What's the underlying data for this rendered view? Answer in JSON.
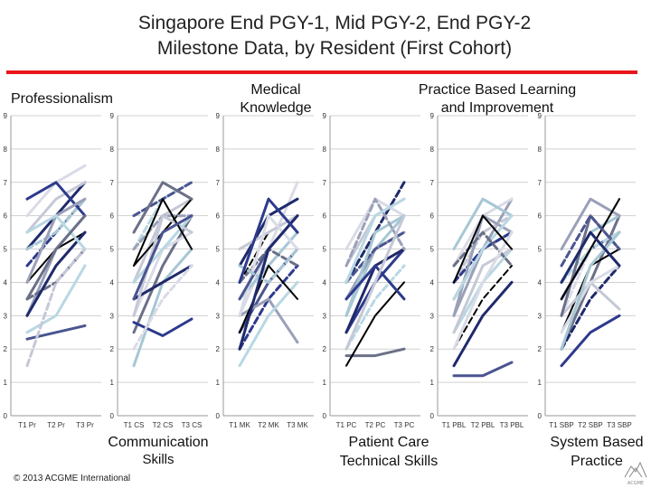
{
  "title": {
    "line1": "Singapore End PGY-1, Mid PGY-2, End PGY-2",
    "line2": "Milestone Data, by Resident (First Cohort)"
  },
  "group_labels": {
    "professionalism": "Professionalism",
    "medical_knowledge_1": "Medical",
    "medical_knowledge_2": "Knowledge",
    "pbli_1": "Practice Based Learning",
    "pbli_2": "and Improvement",
    "communication_1": "Communication",
    "communication_2": "Skills",
    "patient_care_1": "Patient Care",
    "patient_care_2": "Technical Skills",
    "sbp_1": "System Based",
    "sbp_2": "Practice"
  },
  "copyright": "© 2013 ACGME International",
  "colors": {
    "accent_line": "#e8161b",
    "series_palette": [
      "#1f2a6b",
      "#2d3a8c",
      "#9aa0b8",
      "#c5c8d6",
      "#b8d8e3",
      "#6b7088",
      "#d9dbe6",
      "#000000",
      "#4a5590",
      "#a7c7d4"
    ]
  },
  "chart_data": [
    {
      "type": "line",
      "competency": "Professionalism",
      "x": [
        "T1 Pr",
        "T2 Pr",
        "T3 Pr"
      ],
      "ylim": [
        0,
        9
      ],
      "yticks": [
        0,
        1,
        2,
        3,
        4,
        5,
        6,
        7,
        8,
        9
      ],
      "series": [
        {
          "values": [
            5,
            6,
            7
          ]
        },
        {
          "values": [
            4.5,
            5.5,
            6.5
          ]
        },
        {
          "values": [
            3,
            5,
            6
          ]
        },
        {
          "values": [
            5.5,
            6.5,
            7
          ]
        },
        {
          "values": [
            2.5,
            3,
            4.5
          ]
        },
        {
          "values": [
            3.5,
            4,
            5
          ]
        },
        {
          "values": [
            6,
            7,
            7.5
          ]
        },
        {
          "values": [
            4,
            5,
            5.5
          ]
        },
        {
          "values": [
            2.3,
            2.5,
            2.7
          ]
        },
        {
          "values": [
            5,
            5.5,
            6.5
          ]
        },
        {
          "values": [
            3,
            4.5,
            5.5
          ]
        },
        {
          "values": [
            6.5,
            7,
            6
          ]
        },
        {
          "values": [
            4,
            6,
            6.5
          ]
        },
        {
          "values": [
            1.5,
            4,
            5
          ]
        },
        {
          "values": [
            5.5,
            6,
            5
          ]
        },
        {
          "values": [
            3.5,
            5,
            6
          ]
        }
      ]
    },
    {
      "type": "line",
      "competency": "Communication Skills",
      "x": [
        "T1 CS",
        "T2 CS",
        "T3 CS"
      ],
      "ylim": [
        0,
        9
      ],
      "yticks": [
        0,
        1,
        2,
        3,
        4,
        5,
        6,
        7,
        8,
        9
      ],
      "series": [
        {
          "values": [
            4,
            6,
            6.5
          ]
        },
        {
          "values": [
            5,
            6.5,
            7
          ]
        },
        {
          "values": [
            2.5,
            4.5,
            6
          ]
        },
        {
          "values": [
            3,
            5,
            5.5
          ]
        },
        {
          "values": [
            4.5,
            5.5,
            6.5
          ]
        },
        {
          "values": [
            6,
            6.5,
            7
          ]
        },
        {
          "values": [
            1.5,
            4,
            5
          ]
        },
        {
          "values": [
            3.5,
            4,
            4.5
          ]
        },
        {
          "values": [
            2.8,
            2.4,
            2.9
          ]
        },
        {
          "values": [
            5,
            6,
            6
          ]
        },
        {
          "values": [
            3,
            6,
            5.5
          ]
        },
        {
          "values": [
            4,
            5,
            6
          ]
        },
        {
          "values": [
            5.5,
            7,
            6.5
          ]
        },
        {
          "values": [
            2,
            3.5,
            4.5
          ]
        },
        {
          "values": [
            4.5,
            6.5,
            5
          ]
        },
        {
          "values": [
            3.5,
            5.5,
            6
          ]
        }
      ]
    },
    {
      "type": "line",
      "competency": "Medical Knowledge",
      "x": [
        "T1 MK",
        "T2 MK",
        "T3 MK"
      ],
      "ylim": [
        0,
        9
      ],
      "yticks": [
        0,
        1,
        2,
        3,
        4,
        5,
        6,
        7,
        8,
        9
      ],
      "series": [
        {
          "values": [
            3,
            5,
            7
          ]
        },
        {
          "values": [
            4,
            5.5,
            6
          ]
        },
        {
          "values": [
            2.5,
            4,
            5
          ]
        },
        {
          "values": [
            3.5,
            4.5,
            5.5
          ]
        },
        {
          "values": [
            4.5,
            6,
            6.5
          ]
        },
        {
          "values": [
            2,
            3.5,
            4.5
          ]
        },
        {
          "values": [
            3,
            3.5,
            2.2
          ]
        },
        {
          "values": [
            5,
            5.5,
            6
          ]
        },
        {
          "values": [
            1.5,
            3,
            4
          ]
        },
        {
          "values": [
            4,
            5,
            4.5
          ]
        },
        {
          "values": [
            3,
            6,
            5
          ]
        },
        {
          "values": [
            2.5,
            4.5,
            3.5
          ]
        },
        {
          "values": [
            3.5,
            5,
            6
          ]
        },
        {
          "values": [
            4.5,
            4,
            5
          ]
        },
        {
          "values": [
            2,
            5,
            6
          ]
        },
        {
          "values": [
            4,
            6.5,
            5.5
          ]
        }
      ]
    },
    {
      "type": "line",
      "competency": "Patient Care Technical Skills",
      "x": [
        "T1 PC",
        "T2 PC",
        "T3 PC"
      ],
      "ylim": [
        0,
        9
      ],
      "yticks": [
        0,
        1,
        2,
        3,
        4,
        5,
        6,
        7,
        8,
        9
      ],
      "series": [
        {
          "values": [
            3,
            5,
            6
          ]
        },
        {
          "values": [
            4,
            5.5,
            7
          ]
        },
        {
          "values": [
            2.5,
            4,
            5
          ]
        },
        {
          "values": [
            3.5,
            5,
            5.5
          ]
        },
        {
          "values": [
            4.5,
            6,
            6.5
          ]
        },
        {
          "values": [
            2,
            3.5,
            4.5
          ]
        },
        {
          "values": [
            1.8,
            1.8,
            2
          ]
        },
        {
          "values": [
            5,
            6.5,
            6
          ]
        },
        {
          "values": [
            1.5,
            3,
            4
          ]
        },
        {
          "values": [
            4,
            5,
            5.5
          ]
        },
        {
          "values": [
            3,
            5.5,
            6
          ]
        },
        {
          "values": [
            2.5,
            4.5,
            5
          ]
        },
        {
          "values": [
            3.5,
            4.5,
            3.5
          ]
        },
        {
          "values": [
            4.5,
            6.5,
            5
          ]
        },
        {
          "values": [
            2,
            4,
            6
          ]
        },
        {
          "values": [
            4,
            6,
            6.5
          ]
        }
      ]
    },
    {
      "type": "line",
      "competency": "Practice Based Learning and Improvement",
      "x": [
        "T1 PBL",
        "T2 PBL",
        "T3 PBL"
      ],
      "ylim": [
        0,
        9
      ],
      "yticks": [
        0,
        1,
        2,
        3,
        4,
        5,
        6,
        7,
        8,
        9
      ],
      "series": [
        {
          "values": [
            3,
            5,
            6.5
          ]
        },
        {
          "values": [
            4,
            5.5,
            6
          ]
        },
        {
          "values": [
            2.5,
            4,
            5
          ]
        },
        {
          "values": [
            3.5,
            5,
            5.5
          ]
        },
        {
          "values": [
            4.5,
            6,
            6.5
          ]
        },
        {
          "values": [
            2,
            3.5,
            4.5
          ]
        },
        {
          "values": [
            1.2,
            1.2,
            1.6
          ]
        },
        {
          "values": [
            5,
            6.5,
            6
          ]
        },
        {
          "values": [
            1.5,
            3,
            4
          ]
        },
        {
          "values": [
            4,
            5,
            5.5
          ]
        },
        {
          "values": [
            3,
            6,
            5.5
          ]
        },
        {
          "values": [
            2.5,
            4.5,
            5
          ]
        },
        {
          "values": [
            3.5,
            5,
            6
          ]
        },
        {
          "values": [
            4.5,
            5.5,
            4.5
          ]
        },
        {
          "values": [
            2,
            4,
            5.5
          ]
        },
        {
          "values": [
            4,
            6,
            5
          ]
        }
      ]
    },
    {
      "type": "line",
      "competency": "System Based Practice",
      "x": [
        "T1 SBP",
        "T2 SBP",
        "T3 SBP"
      ],
      "ylim": [
        0,
        9
      ],
      "yticks": [
        0,
        1,
        2,
        3,
        4,
        5,
        6,
        7,
        8,
        9
      ],
      "series": [
        {
          "values": [
            2,
            4,
            6
          ]
        },
        {
          "values": [
            3,
            5,
            6.5
          ]
        },
        {
          "values": [
            2.5,
            4.5,
            5
          ]
        },
        {
          "values": [
            3.5,
            5,
            5.5
          ]
        },
        {
          "values": [
            4,
            5.5,
            6
          ]
        },
        {
          "values": [
            2,
            3.5,
            4.5
          ]
        },
        {
          "values": [
            1.5,
            2.5,
            3
          ]
        },
        {
          "values": [
            5,
            6.5,
            6
          ]
        },
        {
          "values": [
            3,
            4,
            3.2
          ]
        },
        {
          "values": [
            4,
            5,
            5.5
          ]
        },
        {
          "values": [
            3,
            6,
            5
          ]
        },
        {
          "values": [
            2.5,
            4,
            4.5
          ]
        },
        {
          "values": [
            3.5,
            5,
            6.5
          ]
        },
        {
          "values": [
            4.5,
            6,
            5
          ]
        },
        {
          "values": [
            2,
            4.5,
            5.5
          ]
        },
        {
          "values": [
            4,
            5.5,
            4.5
          ]
        }
      ]
    }
  ]
}
